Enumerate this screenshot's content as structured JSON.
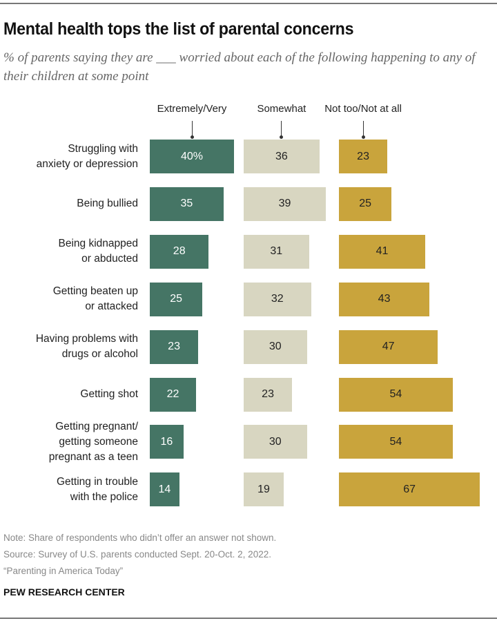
{
  "chart_data": {
    "type": "bar",
    "orientation": "horizontal",
    "title": "Mental health tops the list of parental concerns",
    "subtitle": "% of parents saying they are ___ worried about each of the following happening to any of their children at some point",
    "categories": [
      "Struggling with\nanxiety or depression",
      "Being bullied",
      "Being kidnapped\nor abducted",
      "Getting beaten up\nor attacked",
      "Having problems with\ndrugs or alcohol",
      "Getting shot",
      "Getting pregnant/\ngetting someone\npregnant as a teen",
      "Getting in trouble\nwith the police"
    ],
    "series": [
      {
        "name": "Extremely/Very",
        "color": "#457565",
        "text_color": "#ffffff",
        "values": [
          40,
          35,
          28,
          25,
          23,
          22,
          16,
          14
        ]
      },
      {
        "name": "Somewhat",
        "color": "#d8d6c1",
        "text_color": "#222222",
        "values": [
          36,
          39,
          31,
          32,
          30,
          23,
          30,
          19
        ]
      },
      {
        "name": "Not too/Not at all",
        "color": "#c9a43c",
        "text_color": "#222222",
        "values": [
          23,
          25,
          41,
          43,
          47,
          54,
          54,
          67
        ]
      }
    ],
    "first_label_suffix": "%",
    "xlabel": "",
    "ylabel": "",
    "grid": false,
    "legend": "column headers above bars"
  },
  "footer": {
    "note": "Note: Share of respondents who didn’t offer an answer not shown.",
    "source": "Source: Survey of U.S. parents conducted Sept. 20-Oct. 2, 2022.",
    "report": "“Parenting in America Today”",
    "brand": "PEW RESEARCH CENTER"
  }
}
